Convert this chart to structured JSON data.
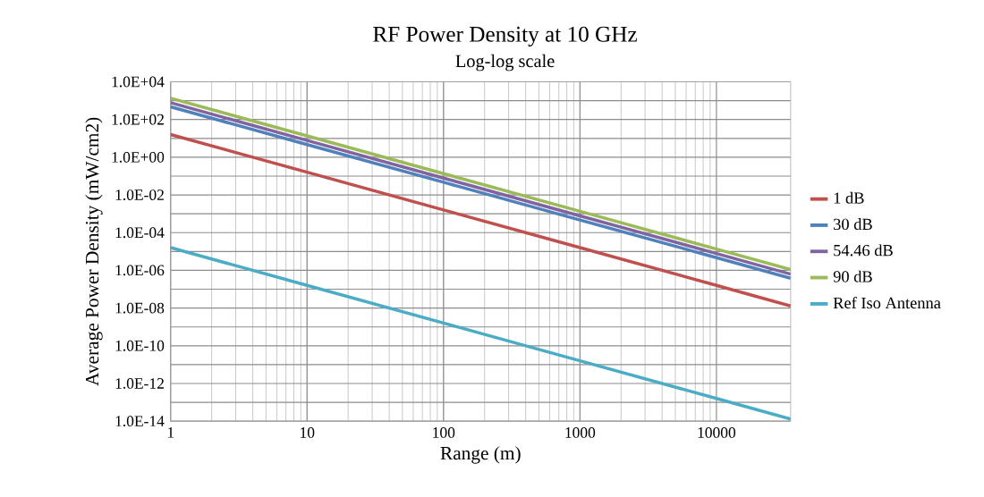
{
  "chart_data": {
    "type": "line",
    "title": "RF Power Density at 10 GHz",
    "subtitle": "Log-log scale",
    "xlabel": "Range (m)",
    "ylabel": "Average Power Density (mW/cm2)",
    "x": [
      1,
      10,
      100,
      1000,
      10000,
      35000
    ],
    "series": [
      {
        "name": "1 dB",
        "color": "#c0504d",
        "values": [
          16,
          0.16,
          0.0016,
          1.6e-05,
          1.6e-07,
          1.3e-08
        ]
      },
      {
        "name": "30 dB",
        "color": "#4f81bd",
        "values": [
          470,
          4.7,
          0.047,
          0.00047,
          4.7e-06,
          3.8e-07
        ]
      },
      {
        "name": "54.46 dB",
        "color": "#8064a2",
        "values": [
          780,
          7.8,
          0.078,
          0.00078,
          7.8e-06,
          6.3e-07
        ]
      },
      {
        "name": "90 dB",
        "color": "#9bbb59",
        "values": [
          1350,
          13.5,
          0.135,
          0.00135,
          1.35e-05,
          1.1e-06
        ]
      },
      {
        "name": "Ref Iso Antenna",
        "color": "#4bacc6",
        "values": [
          1.6e-05,
          1.6e-07,
          1.6e-09,
          1.6e-11,
          1.6e-13,
          1.3e-14
        ]
      }
    ],
    "log": "xy",
    "xlim": [
      1,
      35000
    ],
    "xticks": [
      1,
      10,
      100,
      1000,
      10000
    ],
    "ylim": [
      1e-14,
      10000
    ],
    "yticks": [
      {
        "value": 1e-14,
        "label": "1.0E-14"
      },
      {
        "value": 1e-13,
        "label": null
      },
      {
        "value": 1e-12,
        "label": "1.0E-12"
      },
      {
        "value": 1e-11,
        "label": null
      },
      {
        "value": 1e-10,
        "label": "1.0E-10"
      },
      {
        "value": 1e-09,
        "label": null
      },
      {
        "value": 1e-08,
        "label": "1.0E-08"
      },
      {
        "value": 1e-07,
        "label": null
      },
      {
        "value": 1e-06,
        "label": "1.0E-06"
      },
      {
        "value": 1e-05,
        "label": null
      },
      {
        "value": 0.0001,
        "label": "1.0E-04"
      },
      {
        "value": 0.001,
        "label": null
      },
      {
        "value": 0.01,
        "label": "1.0E-02"
      },
      {
        "value": 0.1,
        "label": null
      },
      {
        "value": 1,
        "label": "1.0E+00"
      },
      {
        "value": 10,
        "label": null
      },
      {
        "value": 100,
        "label": "1.0E+02"
      },
      {
        "value": 1000,
        "label": null
      },
      {
        "value": 10000,
        "label": "1.0E+04"
      }
    ],
    "grid": true,
    "legend": "right",
    "marker": "none",
    "line_style": "solid"
  }
}
